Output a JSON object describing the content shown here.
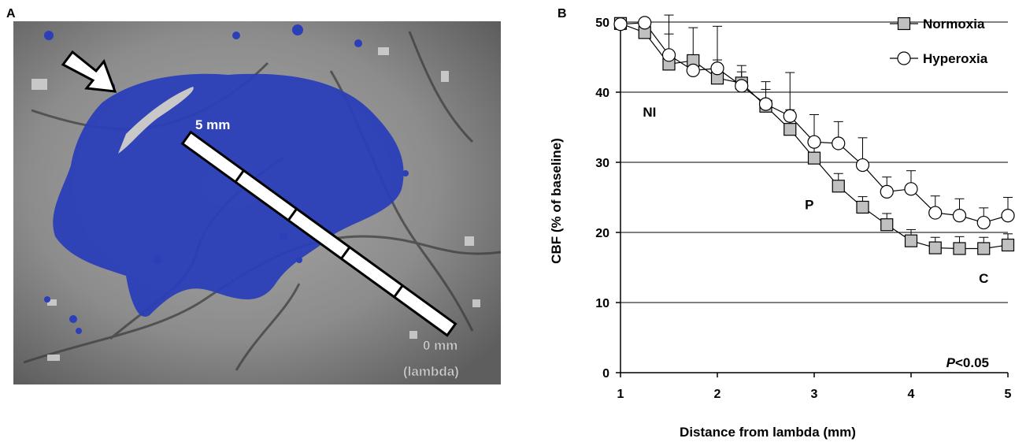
{
  "panel_a": {
    "letter": "A",
    "scale_label_top": "5 mm",
    "scale_label_bottom": "0 mm",
    "scale_label_bottom_sub": "(lambda)",
    "colors": {
      "perfusion": "#2a3fb8",
      "background": "#8a8a8a",
      "bar_fill": "#ffffff"
    },
    "icons": [
      "white-arrow-icon"
    ]
  },
  "chart_data": {
    "type": "line",
    "panel_letter": "B",
    "xlabel": "Distance from lambda (mm)",
    "ylabel": "CBF (% of baseline)",
    "xlim": [
      1,
      5
    ],
    "ylim": [
      0,
      50
    ],
    "x_ticks": [
      1,
      2,
      3,
      4,
      5
    ],
    "y_ticks": [
      0,
      10,
      20,
      30,
      40,
      50
    ],
    "grid": "horizontal",
    "legend_placement": "top-right",
    "x": [
      1.0,
      1.25,
      1.5,
      1.75,
      2.0,
      2.25,
      2.5,
      2.75,
      3.0,
      3.25,
      3.5,
      3.75,
      4.0,
      4.25,
      4.5,
      4.75,
      5.0
    ],
    "series": [
      {
        "name": "Normoxia",
        "marker": "square",
        "color": "#c0c0c0",
        "values": [
          49.8,
          48.5,
          44.0,
          44.5,
          42.0,
          41.3,
          38.0,
          34.7,
          30.6,
          26.6,
          23.6,
          21.1,
          18.8,
          17.8,
          17.7,
          17.7,
          18.2
        ],
        "error": [
          0,
          2.0,
          4.3,
          4.7,
          2.6,
          2.5,
          2.4,
          2.8,
          2.4,
          1.8,
          1.5,
          1.6,
          1.6,
          1.5,
          1.7,
          1.6,
          1.6
        ]
      },
      {
        "name": "Hyperoxia",
        "marker": "circle",
        "color": "#ffffff",
        "values": [
          49.7,
          49.9,
          45.3,
          43.1,
          43.4,
          40.9,
          38.3,
          36.6,
          32.9,
          32.7,
          29.6,
          25.8,
          26.2,
          22.8,
          22.4,
          21.4,
          22.4
        ],
        "error": [
          0,
          0,
          5.7,
          1.5,
          6.0,
          2.0,
          3.2,
          6.2,
          3.9,
          3.1,
          3.9,
          2.1,
          2.6,
          2.4,
          2.4,
          2.1,
          2.6
        ]
      }
    ],
    "annotations": [
      {
        "text": "NI",
        "x": 1.3,
        "y": 36.5
      },
      {
        "text": "P",
        "x": 2.95,
        "y": 23.3
      },
      {
        "text": "C",
        "x": 4.75,
        "y": 12.8
      }
    ],
    "significance": {
      "p_letter": "P",
      "rest": "<0.05"
    }
  }
}
